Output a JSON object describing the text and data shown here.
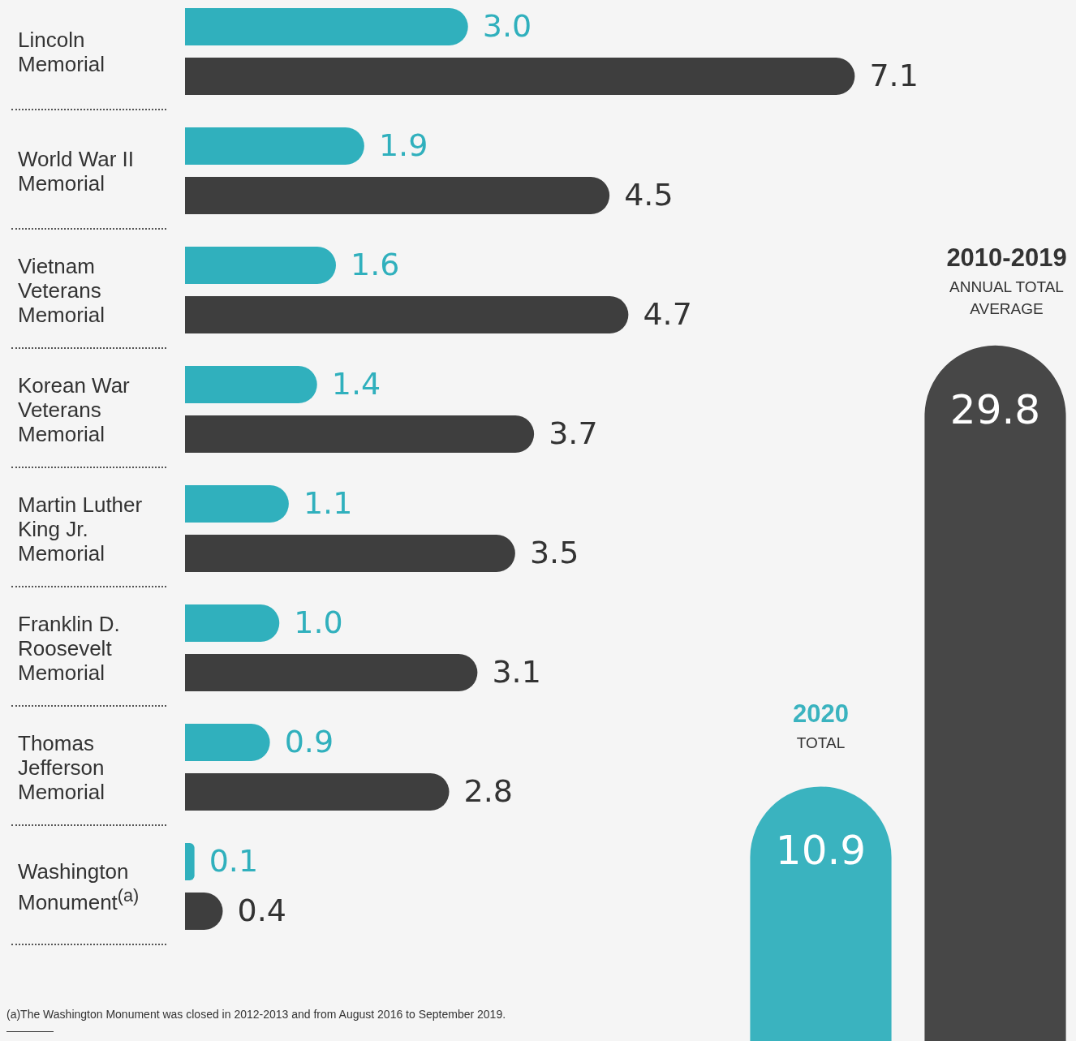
{
  "chart_data": [
    {
      "type": "bar",
      "orientation": "horizontal",
      "categories": [
        "Lincoln Memorial",
        "World War II Memorial",
        "Vietnam Veterans Memorial",
        "Korean War Veterans Memorial",
        "Martin Luther King Jr. Memorial",
        "Franklin D. Roosevelt Memorial",
        "Thomas Jefferson Memorial",
        "Washington Monument$^{(a)}$"
      ],
      "series": [
        {
          "color": "#30b0bd",
          "values": [
            3.0,
            1.9,
            1.6,
            1.4,
            1.1,
            1.0,
            0.9,
            0.1
          ],
          "value_labels": [
            "3.0",
            "1.9",
            "1.6",
            "1.4",
            "1.1",
            "1.0",
            "0.9",
            "0.1"
          ]
        },
        {
          "color": "#3e3e3e",
          "values": [
            7.1,
            4.5,
            4.7,
            3.7,
            3.5,
            3.1,
            2.8,
            0.4
          ],
          "value_labels": [
            "7.1",
            "4.5",
            "4.7",
            "3.7",
            "3.5",
            "3.1",
            "2.8",
            "0.4"
          ]
        }
      ],
      "annotations": [
        "(a)The Washington Monument was closed in 2012-2013 and from August 2016 to September 2019."
      ]
    },
    {
      "type": "bar",
      "categories": [
        "2020 TOTAL",
        "2010-2019 ANNUAL TOTAL AVERAGE"
      ],
      "values": [
        10.9,
        29.8
      ],
      "colors": [
        "#3ab3bf",
        "#474747"
      ],
      "value_labels": [
        "10.9",
        "29.8"
      ]
    }
  ]
}
